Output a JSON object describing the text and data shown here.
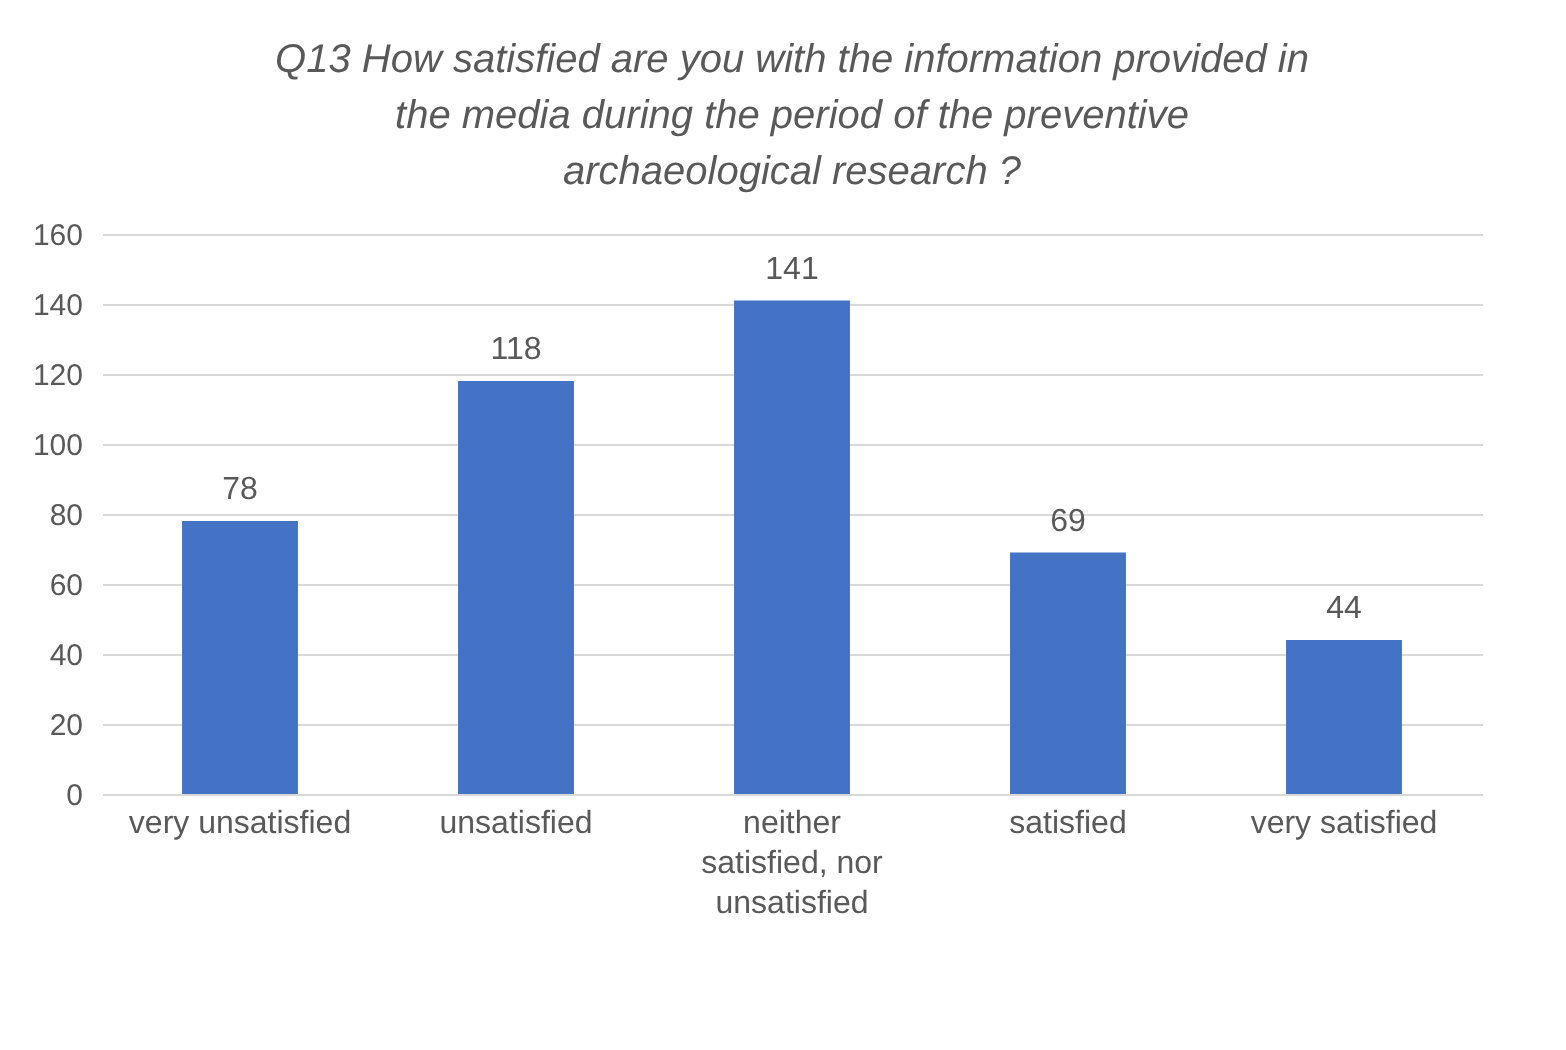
{
  "chart_data": {
    "type": "bar",
    "title": "Q13 How satisfied are you with the information provided in the media during the period of the preventive archaeological research ?",
    "categories": [
      "very unsatisfied",
      "unsatisfied",
      "neither satisfied, nor unsatisfied",
      "satisfied",
      "very satisfied"
    ],
    "values": [
      78,
      118,
      141,
      69,
      44
    ],
    "color": "#4472c4",
    "ylim": [
      0,
      160
    ],
    "yticks": [
      0,
      20,
      40,
      60,
      80,
      100,
      120,
      140,
      160
    ],
    "grid": "y",
    "data_labels": true
  }
}
